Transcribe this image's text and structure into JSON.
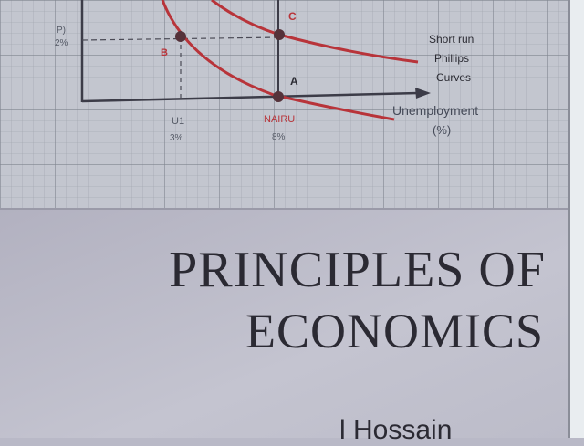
{
  "graph": {
    "y_axis_label": "P)",
    "y_tick": "2%",
    "x_tick_1": "U1",
    "x_tick_1_value": "3%",
    "x_tick_2": "NAIRU",
    "x_tick_2_value": "8%",
    "x_axis_label": "Unemployment",
    "x_axis_unit": "(%)",
    "point_a": "A",
    "point_b": "B",
    "point_c": "C",
    "curve_label_1": "Short run",
    "curve_label_2": "Phillips",
    "curve_label_3": "Curves",
    "colors": {
      "curve": "#b8343a",
      "axis": "#3c3c48",
      "grid": "#8f939c",
      "paper": "#c3c6cf"
    }
  },
  "book": {
    "title_line_1": "PRINCIPLES OF",
    "title_line_2": "ECONOMICS",
    "author_partial": "l Hossain"
  }
}
